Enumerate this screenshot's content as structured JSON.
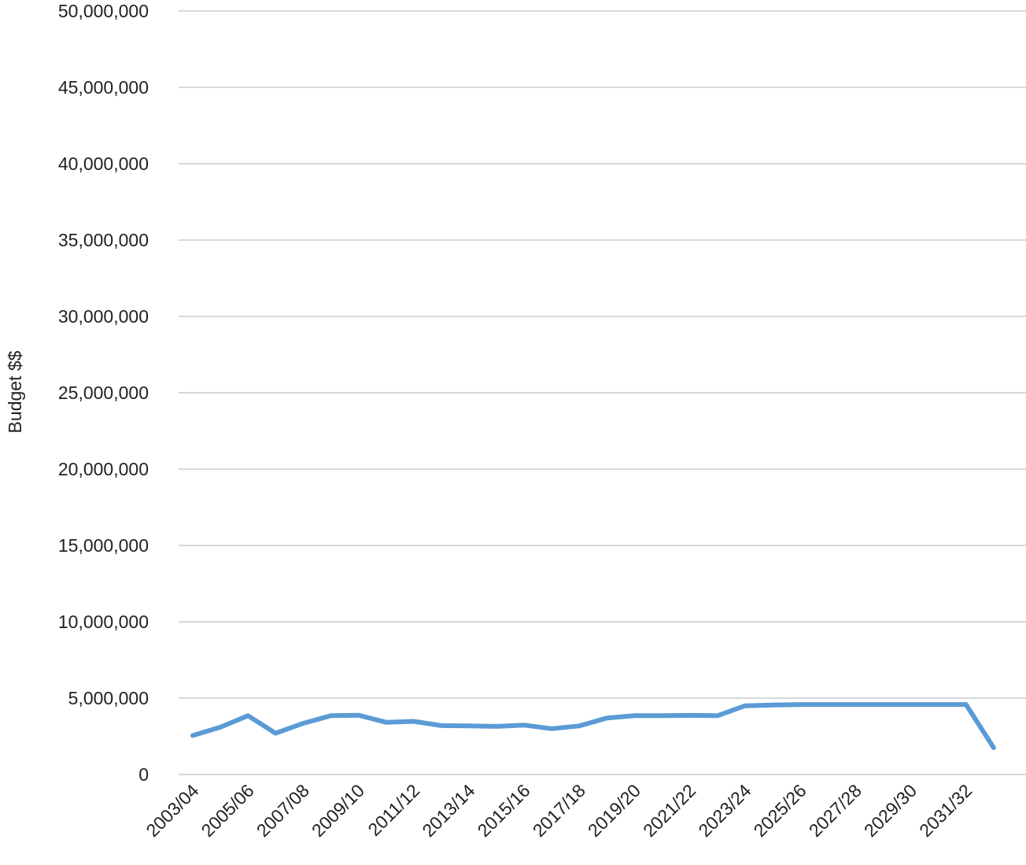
{
  "chart_data": {
    "type": "line",
    "ylabel": "Budget $$",
    "xlabel": "",
    "title": "",
    "ylim": [
      0,
      50000000
    ],
    "yticks": [
      0,
      5000000,
      10000000,
      15000000,
      20000000,
      25000000,
      30000000,
      35000000,
      40000000,
      45000000,
      50000000
    ],
    "ytick_labels": [
      "0",
      "5,000,000",
      "10,000,000",
      "15,000,000",
      "20,000,000",
      "25,000,000",
      "30,000,000",
      "35,000,000",
      "40,000,000",
      "45,000,000",
      "50,000,000"
    ],
    "x_point_count": 30,
    "xtick_labels": [
      {
        "index": 0,
        "label": "2003/04"
      },
      {
        "index": 2,
        "label": "2005/06"
      },
      {
        "index": 4,
        "label": "2007/08"
      },
      {
        "index": 6,
        "label": "2009/10"
      },
      {
        "index": 8,
        "label": "2011/12"
      },
      {
        "index": 10,
        "label": "2013/14"
      },
      {
        "index": 12,
        "label": "2015/16"
      },
      {
        "index": 14,
        "label": "2017/18"
      },
      {
        "index": 16,
        "label": "2019/20"
      },
      {
        "index": 18,
        "label": "2021/22"
      },
      {
        "index": 20,
        "label": "2023/24"
      },
      {
        "index": 22,
        "label": "2025/26"
      },
      {
        "index": 24,
        "label": "2027/28"
      },
      {
        "index": 26,
        "label": "2029/30"
      },
      {
        "index": 28,
        "label": "2031/32"
      }
    ],
    "series": [
      {
        "values": [
          2550000,
          3100000,
          3850000,
          2700000,
          3350000,
          3850000,
          3880000,
          3420000,
          3480000,
          3200000,
          3180000,
          3150000,
          3230000,
          3000000,
          3180000,
          3700000,
          3850000,
          3850000,
          3870000,
          3850000,
          4500000,
          4550000,
          4580000,
          4580000,
          4580000,
          4580000,
          4580000,
          4580000,
          4580000,
          1750000
        ]
      }
    ],
    "grid": true,
    "legend": "none",
    "colors": {
      "line": "#5b9bd5",
      "grid": "#d9d9d9",
      "text": "#222222"
    }
  }
}
